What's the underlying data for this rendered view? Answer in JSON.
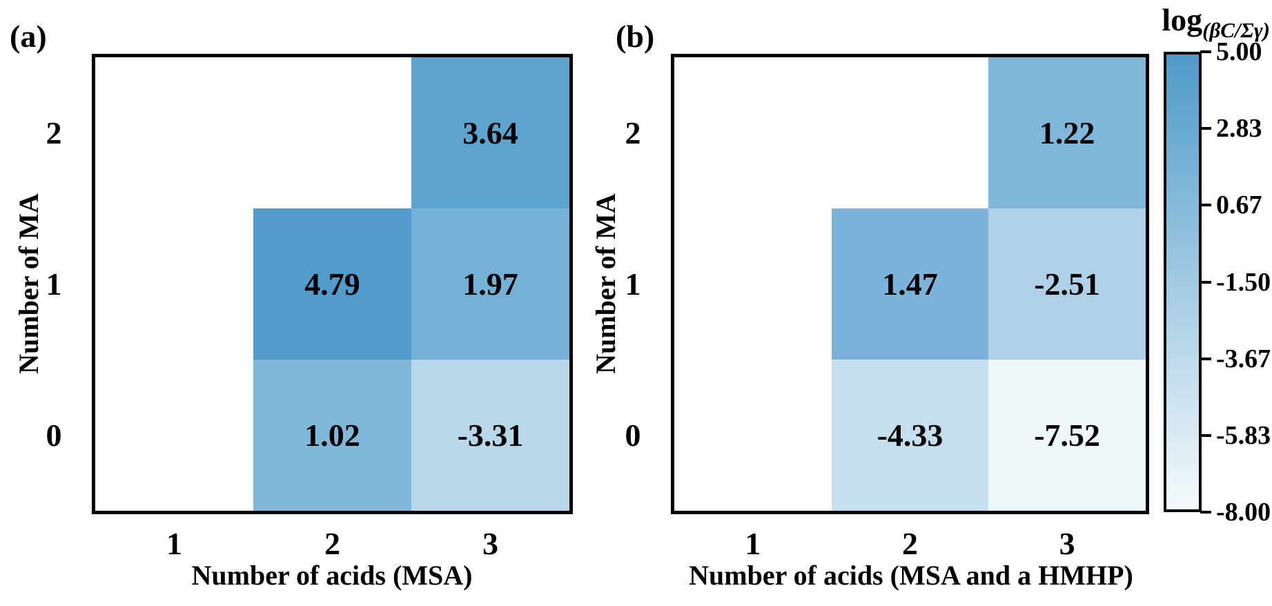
{
  "colorbar": {
    "title_base": "log",
    "title_subscript": "(βC/Σγ)",
    "tick_labels": [
      "5.00",
      "2.83",
      "0.67",
      "-1.50",
      "-3.67",
      "-5.83",
      "-8.00"
    ],
    "min_value": -8.0,
    "max_value": 5.0,
    "high_color": "#4E9ACA",
    "low_color": "#F5FAFC",
    "border_color": "#000000"
  },
  "chart_data": {
    "type": "heatmap",
    "colorbar_label": "log(βC/Σγ)",
    "value_range": [
      -8.0,
      5.0
    ],
    "grid": false,
    "legend_position": "right-colorbar",
    "panels": [
      {
        "label": "(a)",
        "xlabel": "Number of acids (MSA)",
        "ylabel": "Number of MA",
        "x_ticks": [
          "1",
          "2",
          "3"
        ],
        "y_ticks": [
          "2",
          "1",
          "0"
        ],
        "cells": [
          {
            "x": "3",
            "y": "2",
            "value": 3.64,
            "label": "3.64"
          },
          {
            "x": "2",
            "y": "1",
            "value": 4.79,
            "label": "4.79"
          },
          {
            "x": "3",
            "y": "1",
            "value": 1.97,
            "label": "1.97"
          },
          {
            "x": "2",
            "y": "0",
            "value": 1.02,
            "label": "1.02"
          },
          {
            "x": "3",
            "y": "0",
            "value": -3.31,
            "label": "-3.31"
          }
        ]
      },
      {
        "label": "(b)",
        "xlabel": "Number of acids (MSA and a HMHP)",
        "ylabel": "Number of MA",
        "x_ticks": [
          "1",
          "2",
          "3"
        ],
        "y_ticks": [
          "2",
          "1",
          "0"
        ],
        "cells": [
          {
            "x": "3",
            "y": "2",
            "value": 1.22,
            "label": "1.22"
          },
          {
            "x": "2",
            "y": "1",
            "value": 1.47,
            "label": "1.47"
          },
          {
            "x": "3",
            "y": "1",
            "value": -2.51,
            "label": "-2.51"
          },
          {
            "x": "2",
            "y": "0",
            "value": -4.33,
            "label": "-4.33"
          },
          {
            "x": "3",
            "y": "0",
            "value": -7.52,
            "label": "-7.52"
          }
        ]
      }
    ]
  }
}
